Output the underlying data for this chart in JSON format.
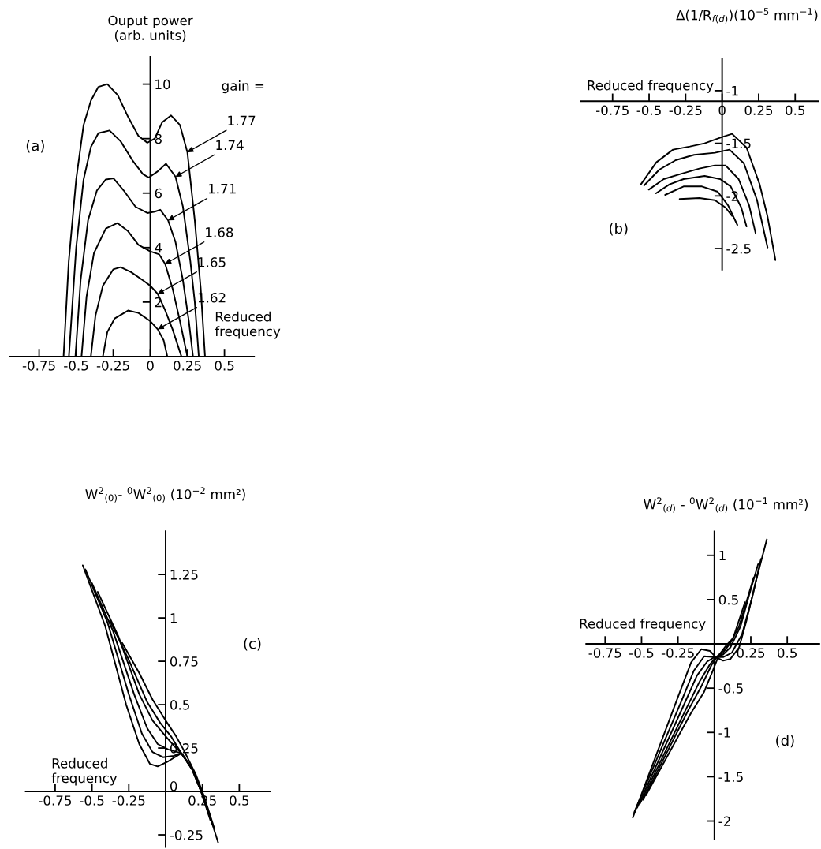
{
  "chart_data": [
    {
      "type": "line",
      "xlabel": "Reduced\nfrequency",
      "ylabel": "Ouput power\n(arb. units)",
      "xlim": [
        -0.95,
        0.7
      ],
      "ylim": [
        0,
        11
      ],
      "xticks": [
        -0.75,
        -0.5,
        -0.25,
        0,
        0.25,
        0.5
      ],
      "yticks": [
        2,
        4,
        6,
        8,
        10
      ],
      "series": [
        {
          "color": "#000000",
          "x": [
            -0.585,
            -0.55,
            -0.5,
            -0.45,
            -0.4,
            -0.35,
            -0.29,
            -0.22,
            -0.15,
            -0.08,
            -0.02,
            0.03,
            0.08,
            0.14,
            0.2,
            0.25,
            0.3,
            0.34,
            0.369
          ],
          "values": [
            0,
            3.5,
            6.5,
            8.5,
            9.4,
            9.9,
            10.0,
            9.6,
            8.8,
            8.1,
            7.85,
            8.0,
            8.6,
            8.85,
            8.5,
            7.5,
            5,
            2.5,
            0
          ]
        },
        {
          "color": "#000000",
          "x": [
            -0.549,
            -0.5,
            -0.45,
            -0.4,
            -0.35,
            -0.275,
            -0.2,
            -0.12,
            -0.05,
            -0.01,
            0.05,
            0.106,
            0.17,
            0.22,
            0.27,
            0.3,
            0.327
          ],
          "values": [
            0,
            4,
            6.5,
            7.7,
            8.2,
            8.3,
            7.9,
            7.2,
            6.7,
            6.57,
            6.8,
            7.08,
            6.6,
            5.5,
            3.5,
            2,
            0
          ]
        },
        {
          "color": "#000000",
          "x": [
            -0.505,
            -0.47,
            -0.42,
            -0.36,
            -0.3,
            -0.248,
            -0.18,
            -0.1,
            -0.02,
            0.03,
            0.067,
            0.12,
            0.17,
            0.22,
            0.26,
            0.288
          ],
          "values": [
            0,
            2.8,
            5,
            6.1,
            6.5,
            6.54,
            6.1,
            5.5,
            5.27,
            5.32,
            5.39,
            5.0,
            4.2,
            2.8,
            1.3,
            0
          ]
        },
        {
          "color": "#000000",
          "x": [
            -0.464,
            -0.43,
            -0.38,
            -0.3,
            -0.221,
            -0.15,
            -0.08,
            0,
            0.06,
            0.1,
            0.15,
            0.2,
            0.25
          ],
          "values": [
            0,
            2.2,
            3.8,
            4.7,
            4.9,
            4.6,
            4.1,
            3.86,
            3.75,
            3.4,
            2.5,
            1.3,
            0
          ]
        },
        {
          "color": "#000000",
          "x": [
            -0.401,
            -0.37,
            -0.32,
            -0.25,
            -0.2,
            -0.13,
            -0.05,
            0,
            0.05,
            0.1,
            0.15,
            0.21
          ],
          "values": [
            0,
            1.5,
            2.6,
            3.2,
            3.28,
            3.1,
            2.8,
            2.6,
            2.3,
            1.7,
            1.0,
            0
          ]
        },
        {
          "color": "#000000",
          "x": [
            -0.32,
            -0.29,
            -0.24,
            -0.15,
            -0.08,
            0,
            0.05,
            0.09,
            0.115
          ],
          "values": [
            0,
            0.9,
            1.4,
            1.69,
            1.6,
            1.3,
            1.0,
            0.6,
            0
          ]
        }
      ],
      "annotations": [
        "(a)",
        "gain =",
        {
          "text": "1.77",
          "x": 0.25,
          "y": 7.5
        },
        {
          "text": "1.74",
          "x": 0.17,
          "y": 6.6
        },
        {
          "text": "1.71",
          "x": 0.12,
          "y": 5.0
        },
        {
          "text": "1.68",
          "x": 0.1,
          "y": 3.4
        },
        {
          "text": "1.65",
          "x": 0.05,
          "y": 2.3
        },
        {
          "text": "1.62",
          "x": 0.05,
          "y": 1.0
        }
      ]
    },
    {
      "type": "line",
      "xlabel": "Reduced frequency",
      "ylabel": "Δ(1/R$_{f(d)}$)(10$^{−5}$ mm$^{−1}$)",
      "xlim": [
        -0.97,
        0.66
      ],
      "ylim": [
        -2.7,
        -0.7
      ],
      "xticks": [
        -0.75,
        -0.5,
        -0.25,
        0,
        0.25,
        0.5
      ],
      "yticks": [
        -1,
        -1.5,
        -2,
        -2.5
      ],
      "series": [
        {
          "color": "#000000",
          "x": [
            -0.556,
            -0.45,
            -0.336,
            -0.22,
            -0.12,
            0,
            0.068,
            0.167,
            0.257,
            0.31,
            0.365
          ],
          "values": [
            -1.89,
            -1.68,
            -1.56,
            -1.53,
            -1.5,
            -1.44,
            -1.41,
            -1.54,
            -1.89,
            -2.19,
            -2.61
          ]
        },
        {
          "color": "#000000",
          "x": [
            -0.534,
            -0.43,
            -0.318,
            -0.192,
            -0.05,
            0.05,
            0.149,
            0.239,
            0.311
          ],
          "values": [
            -1.9,
            -1.75,
            -1.66,
            -1.61,
            -1.59,
            -1.56,
            -1.69,
            -2.04,
            -2.49
          ]
        },
        {
          "color": "#000000",
          "x": [
            -0.502,
            -0.4,
            -0.282,
            -0.156,
            -0.05,
            0.023,
            0.113,
            0.185,
            0.23
          ],
          "values": [
            -1.94,
            -1.84,
            -1.79,
            -1.74,
            -1.71,
            -1.71,
            -1.84,
            -2.09,
            -2.36
          ]
        },
        {
          "color": "#000000",
          "x": [
            -0.453,
            -0.36,
            -0.264,
            -0.12,
            -0.013,
            0.059,
            0.131,
            0.167
          ],
          "values": [
            -1.975,
            -1.89,
            -1.84,
            -1.81,
            -1.84,
            -1.91,
            -2.11,
            -2.29
          ]
        },
        {
          "color": "#000000",
          "x": [
            -0.39,
            -0.264,
            -0.138,
            -0.03,
            0.041,
            0.104
          ],
          "values": [
            -1.99,
            -1.91,
            -1.91,
            -1.96,
            -2.09,
            -2.275
          ]
        },
        {
          "color": "#000000",
          "x": [
            -0.291,
            -0.156,
            -0.05,
            0.023,
            0.068
          ],
          "values": [
            -2.03,
            -2.02,
            -2.04,
            -2.11,
            -2.19
          ]
        }
      ],
      "annotations": [
        "(b)"
      ]
    },
    {
      "type": "line",
      "xlabel": "Reduced\nfrequency",
      "ylabel": "W$^{2}$$_{(0)}$- $^{0}$W$^{2}$$_{(0)}$ (10$^{−2}$ mm²)",
      "xlim": [
        -0.95,
        0.71
      ],
      "ylim": [
        -0.32,
        1.5
      ],
      "xticks": [
        -0.75,
        -0.5,
        -0.25,
        0.25,
        0.5
      ],
      "yticks": [
        -0.25,
        0,
        0.25,
        0.5,
        0.75,
        1,
        1.25
      ],
      "series": [
        {
          "color": "#000000",
          "x": [
            -0.5625,
            -0.411,
            -0.268,
            -0.179,
            -0.107,
            -0.054,
            0.018,
            0.107,
            0.179,
            0.241,
            0.304,
            0.357
          ],
          "values": [
            1.303,
            0.955,
            0.5,
            0.273,
            0.159,
            0.144,
            0.174,
            0.22,
            0.136,
            0,
            -0.152,
            -0.295
          ]
        },
        {
          "color": "#000000",
          "x": [
            -0.545,
            -0.393,
            -0.25,
            -0.161,
            -0.089,
            -0.018,
            0.054,
            0.107,
            0.179,
            0.241,
            0.286
          ],
          "values": [
            1.28,
            0.97,
            0.56,
            0.333,
            0.227,
            0.197,
            0.205,
            0.22,
            0.129,
            0,
            -0.106
          ]
        },
        {
          "color": "#000000",
          "x": [
            -0.5,
            -0.357,
            -0.214,
            -0.125,
            -0.054,
            0.018,
            0.107,
            0.179,
            0.241,
            0.295
          ],
          "values": [
            1.2,
            0.924,
            0.56,
            0.364,
            0.273,
            0.242,
            0.22,
            0.129,
            0,
            -0.136
          ]
        },
        {
          "color": "#000000",
          "x": [
            -0.461,
            -0.321,
            -0.179,
            -0.089,
            0,
            0.0625,
            0.107,
            0.1875,
            0.241,
            0.304
          ],
          "values": [
            1.15,
            0.894,
            0.56,
            0.409,
            0.318,
            0.258,
            0.22,
            0.121,
            0,
            -0.167
          ]
        },
        {
          "color": "#000000",
          "x": [
            -0.379,
            -0.25,
            -0.125,
            -0.036,
            0.036,
            0.107,
            0.196,
            0.25,
            0.321
          ],
          "values": [
            0.985,
            0.758,
            0.515,
            0.394,
            0.318,
            0.22,
            0.106,
            -0.008,
            -0.197
          ]
        },
        {
          "color": "#000000",
          "x": [
            -0.295,
            -0.179,
            -0.089,
            0,
            0.071,
            0.125,
            0.205,
            0.259,
            0.33
          ],
          "values": [
            0.856,
            0.682,
            0.53,
            0.409,
            0.318,
            0.235,
            0.098,
            -0.023,
            -0.212
          ]
        }
      ],
      "annotations": [
        "(c)"
      ]
    },
    {
      "type": "line",
      "xlabel": "Reduced frequency",
      "ylabel": "W$^{2}$$_{(d)}$ - $^{0}$W$^{2}$$_{(d)}$ (10$^{−1}$ mm²)",
      "xlim": [
        -0.88,
        0.72
      ],
      "ylim": [
        -2.2,
        1.27
      ],
      "xticks": [
        -0.75,
        -0.5,
        -0.25,
        0.25,
        0.5
      ],
      "yticks": [
        -2,
        -1.5,
        -1,
        -0.5,
        0.5,
        1
      ],
      "series": [
        {
          "color": "#000000",
          "x": [
            -0.56,
            -0.25,
            -0.16,
            -0.09,
            -0.03,
            0.01,
            0.06,
            0.11,
            0.17,
            0.22,
            0.29,
            0.36
          ],
          "values": [
            -1.96,
            -0.6,
            -0.21,
            -0.06,
            -0.08,
            -0.15,
            -0.19,
            -0.17,
            -0.04,
            0.26,
            0.74,
            1.18
          ]
        },
        {
          "color": "#000000",
          "x": [
            -0.55,
            -0.23,
            -0.14,
            -0.07,
            0,
            0.06,
            0.12,
            0.19,
            0.26,
            0.32
          ],
          "values": [
            -1.9,
            -0.66,
            -0.3,
            -0.14,
            -0.15,
            -0.15,
            -0.1,
            0.11,
            0.53,
            0.96
          ]
        },
        {
          "color": "#000000",
          "x": [
            -0.53,
            -0.21,
            -0.12,
            -0.05,
            0,
            0.06,
            0.11,
            0.18,
            0.24,
            0.3
          ],
          "values": [
            -1.85,
            -0.69,
            -0.36,
            -0.2,
            -0.15,
            -0.12,
            -0.04,
            0.2,
            0.56,
            0.9
          ]
        },
        {
          "color": "#000000",
          "x": [
            -0.51,
            -0.19,
            -0.1,
            -0.03,
            0,
            0.06,
            0.11,
            0.17,
            0.27
          ],
          "values": [
            -1.8,
            -0.72,
            -0.42,
            -0.23,
            -0.17,
            -0.1,
            0.01,
            0.2,
            0.75
          ]
        },
        {
          "color": "#000000",
          "x": [
            -0.49,
            -0.18,
            -0.09,
            -0.02,
            0.02,
            0.08,
            0.13,
            0.21
          ],
          "values": [
            -1.76,
            -0.75,
            -0.48,
            -0.24,
            -0.14,
            -0.05,
            0.07,
            0.47
          ]
        },
        {
          "color": "#000000",
          "x": [
            -0.47,
            -0.16,
            -0.07,
            -0.01,
            0.03,
            0.08,
            0.12
          ],
          "values": [
            -1.71,
            -0.78,
            -0.54,
            -0.3,
            -0.13,
            -0.02,
            0.05
          ]
        }
      ],
      "annotations": [
        "(d)"
      ]
    }
  ]
}
